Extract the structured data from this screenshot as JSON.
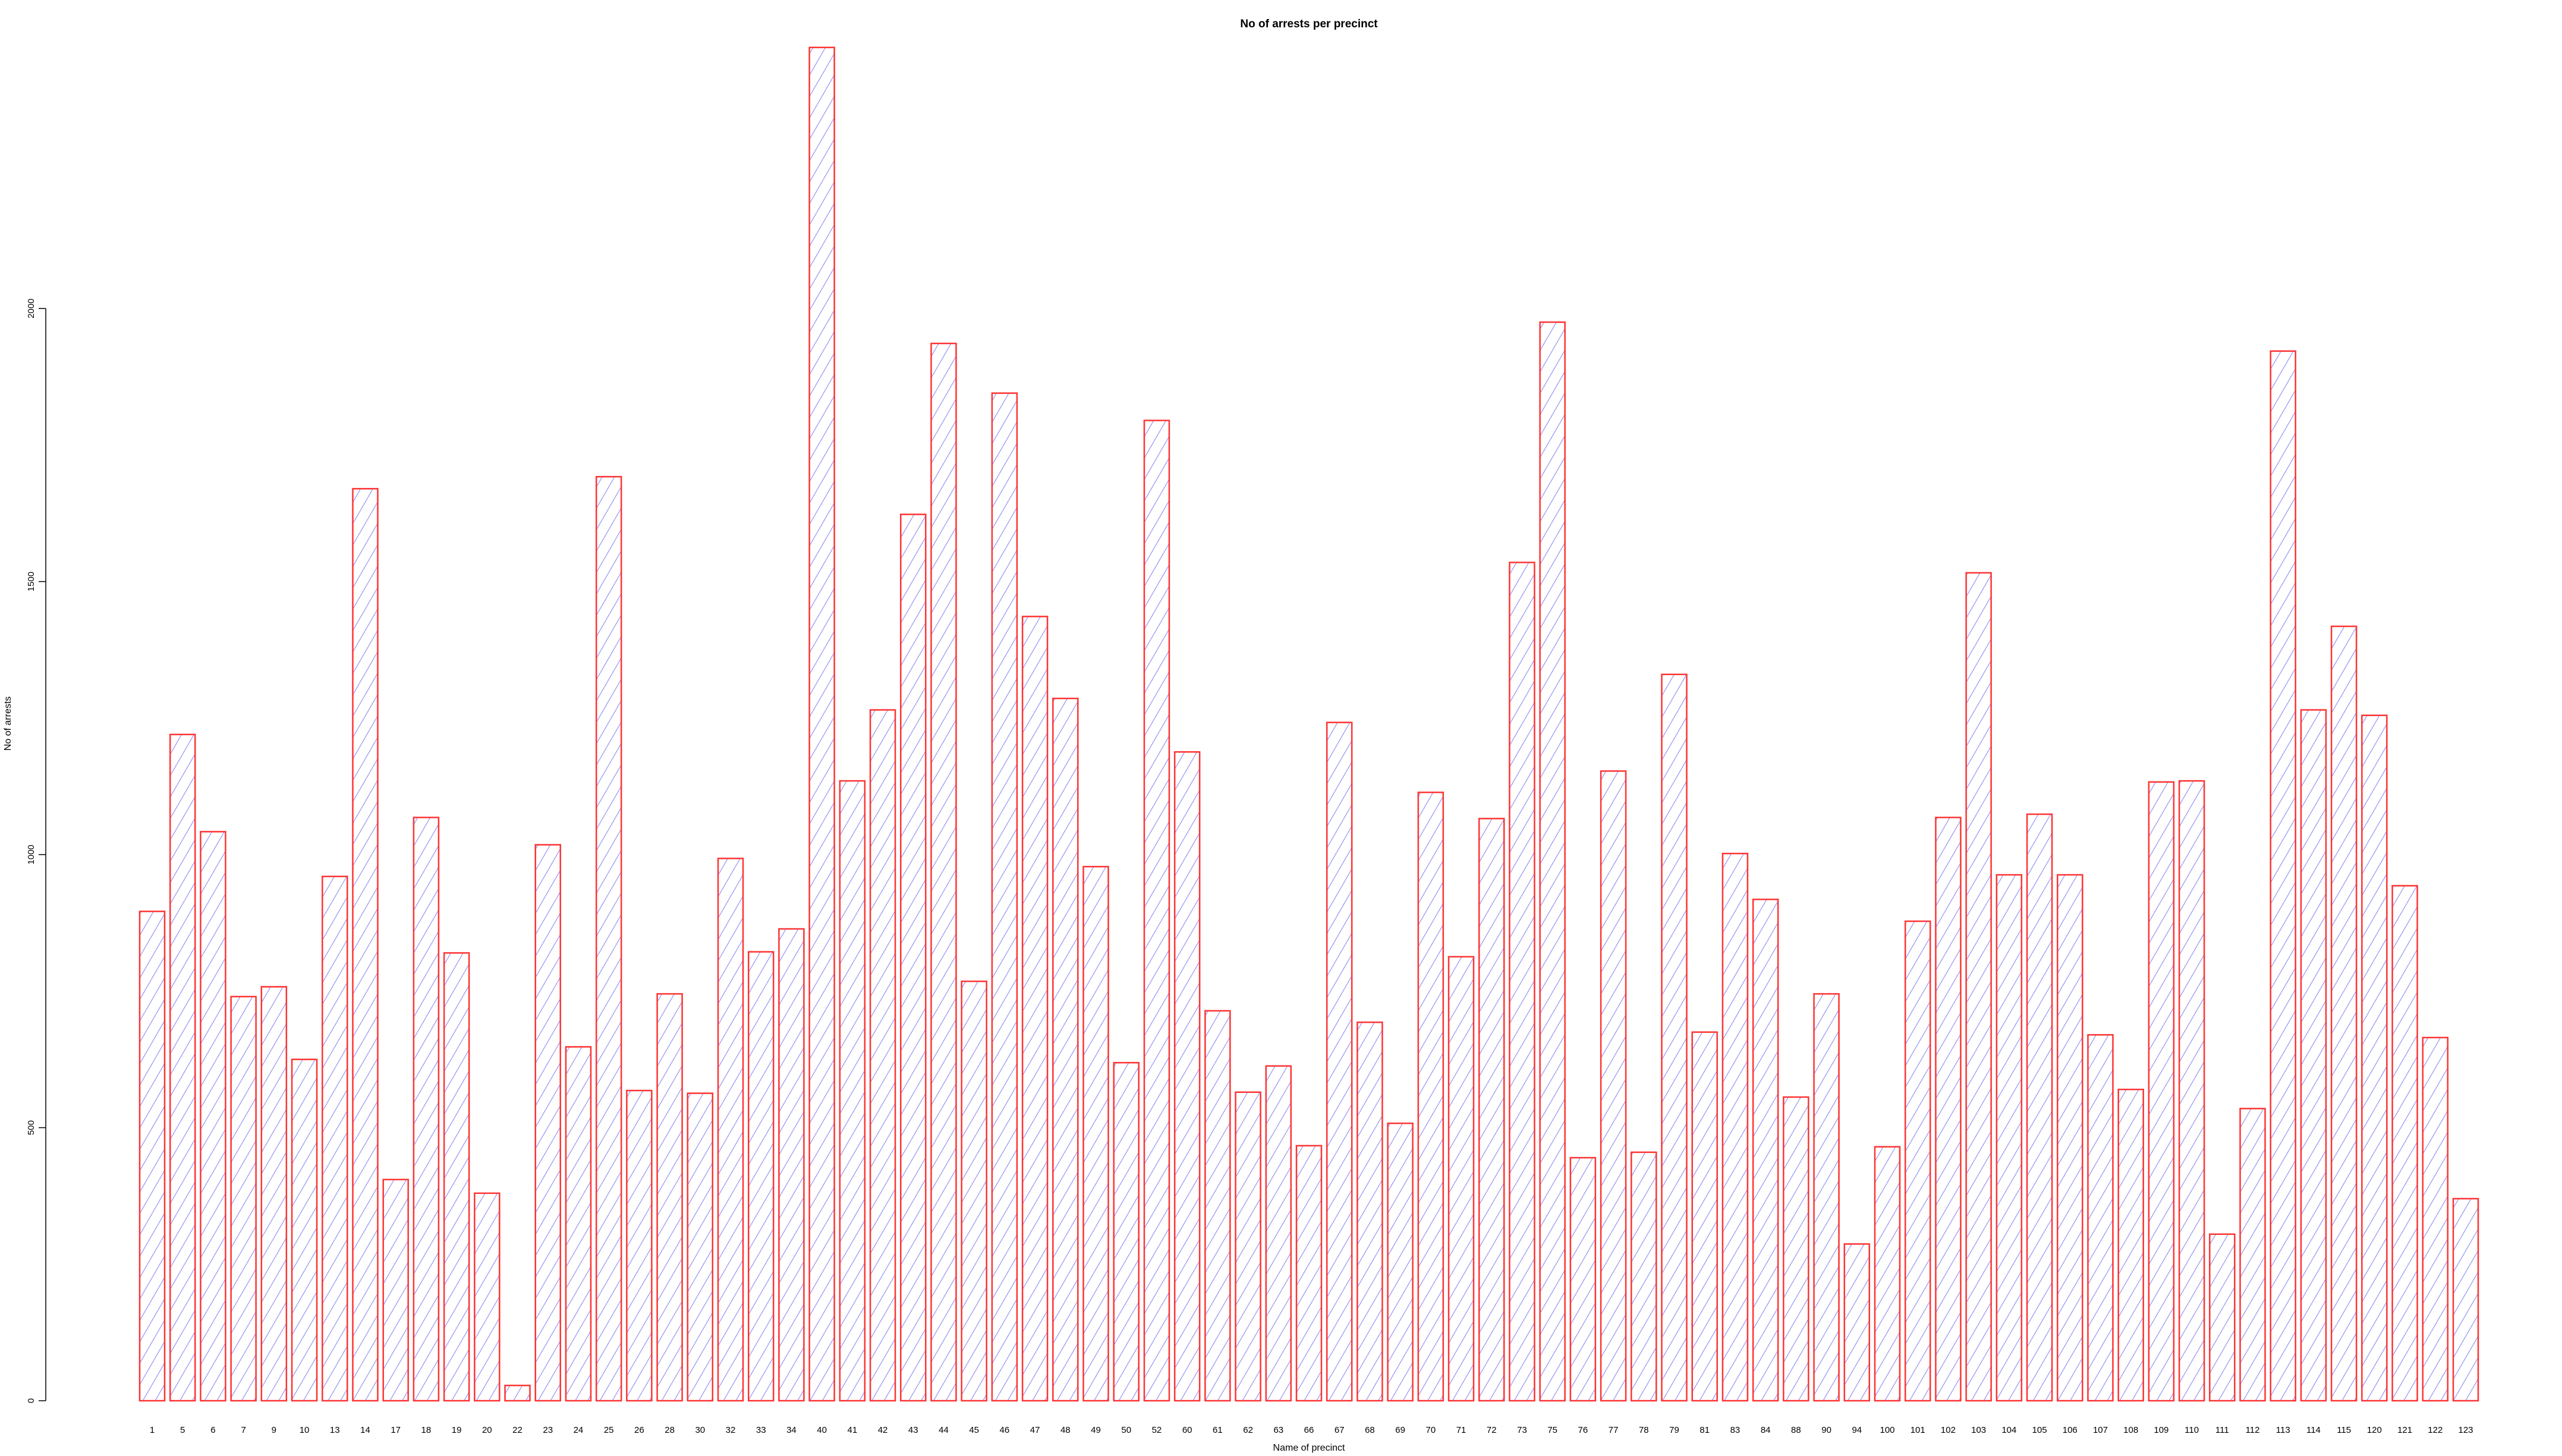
{
  "chart_data": {
    "type": "bar",
    "title": "No of arrests per precinct",
    "xlabel": "Name of precinct",
    "ylabel": "No of arrests",
    "ylim": [
      0,
      2480
    ],
    "yticks": [
      0,
      500,
      1000,
      1500,
      2000
    ],
    "grid": false,
    "bar_fill": "diagonal hatch",
    "colors": {
      "hatch": "#8a8af0",
      "border": "#ff3333"
    },
    "categories": [
      "1",
      "5",
      "6",
      "7",
      "9",
      "10",
      "13",
      "14",
      "17",
      "18",
      "19",
      "20",
      "22",
      "23",
      "24",
      "25",
      "26",
      "28",
      "30",
      "32",
      "33",
      "34",
      "40",
      "41",
      "42",
      "43",
      "44",
      "45",
      "46",
      "47",
      "48",
      "49",
      "50",
      "52",
      "60",
      "61",
      "62",
      "63",
      "66",
      "67",
      "68",
      "69",
      "70",
      "71",
      "72",
      "73",
      "75",
      "76",
      "77",
      "78",
      "79",
      "81",
      "83",
      "84",
      "88",
      "90",
      "94",
      "100",
      "101",
      "102",
      "103",
      "104",
      "105",
      "106",
      "107",
      "108",
      "109",
      "110",
      "111",
      "112",
      "113",
      "114",
      "115",
      "120",
      "121",
      "122",
      "123"
    ],
    "values": [
      896,
      1220,
      1042,
      740,
      758,
      625,
      960,
      1670,
      405,
      1068,
      820,
      380,
      28,
      1018,
      648,
      1692,
      568,
      745,
      563,
      993,
      822,
      864,
      2478,
      1135,
      1265,
      1623,
      1936,
      768,
      1845,
      1436,
      1286,
      978,
      619,
      1795,
      1188,
      714,
      565,
      613,
      467,
      1242,
      693,
      508,
      1114,
      813,
      1066,
      1535,
      1975,
      445,
      1153,
      455,
      1330,
      675,
      1002,
      918,
      556,
      745,
      287,
      465,
      878,
      1068,
      1516,
      963,
      1074,
      963,
      670,
      570,
      1133,
      1135,
      305,
      535,
      1922,
      1265,
      1418,
      1255,
      943,
      665,
      370
    ]
  }
}
